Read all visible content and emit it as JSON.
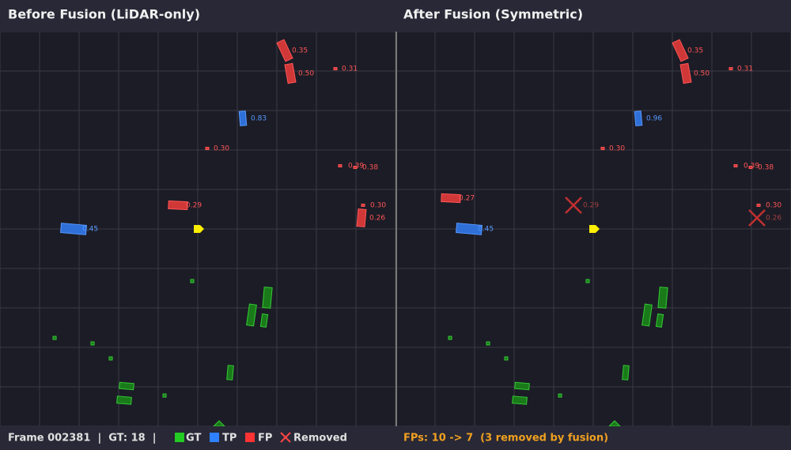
{
  "panels": [
    {
      "title": "Before Fusion (LiDAR-only)",
      "labels": [
        "0.35",
        "0.50",
        "0.31",
        "0.83",
        "0.30",
        "0.39",
        "0.38",
        "0.29",
        "0.30",
        "0.45",
        "0.26"
      ]
    },
    {
      "title": "After Fusion (Symmetric)",
      "labels": [
        "0.35",
        "0.50",
        "0.31",
        "0.96",
        "0.30",
        "0.39",
        "0.38",
        "0.27",
        "0.29",
        "0.30",
        "0.26",
        "0.45"
      ]
    }
  ],
  "footer": {
    "frame": "Frame 002381  |  GT: 18  |",
    "legend": [
      "GT",
      "TP",
      "FP",
      "Removed"
    ],
    "summary": "FPs: 10 -> 7  (3 removed by fusion)"
  }
}
